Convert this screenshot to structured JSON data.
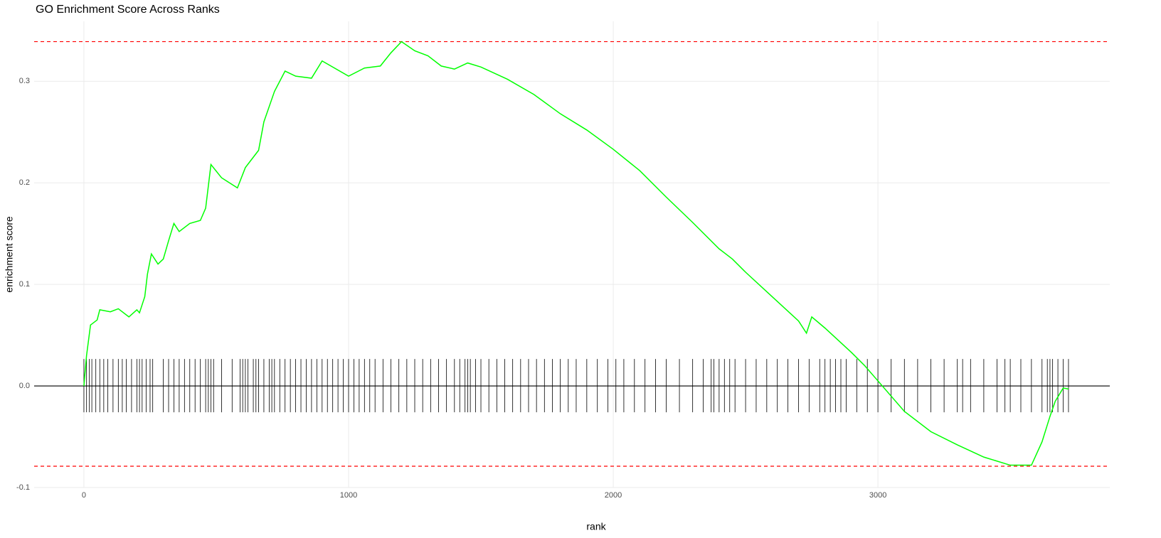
{
  "chart_data": {
    "type": "line",
    "title": "GO Enrichment Score Across Ranks",
    "x_label": "rank",
    "y_label": "enrichment score",
    "xlim": [
      -188,
      3876
    ],
    "ylim": [
      -0.1,
      0.359
    ],
    "xticks": [
      0,
      1000,
      2000,
      3000
    ],
    "yticks": [
      -0.1,
      {
        "value": 0,
        "label": "0.0"
      },
      0.1,
      0.2,
      0.3
    ],
    "grid": true,
    "baseline": 0,
    "hlines": [
      {
        "value": 0.339,
        "color": "#ff0000"
      },
      {
        "value": -0.079,
        "color": "#ff0000"
      }
    ],
    "x": [
      0,
      10,
      25,
      50,
      60,
      100,
      130,
      170,
      200,
      210,
      230,
      240,
      255,
      280,
      300,
      320,
      340,
      360,
      400,
      440,
      460,
      480,
      520,
      580,
      610,
      660,
      680,
      720,
      760,
      800,
      860,
      900,
      1000,
      1060,
      1120,
      1160,
      1200,
      1250,
      1300,
      1350,
      1400,
      1450,
      1500,
      1600,
      1700,
      1800,
      1900,
      2000,
      2100,
      2200,
      2300,
      2400,
      2450,
      2500,
      2600,
      2700,
      2730,
      2750,
      2800,
      2900,
      2950,
      3000,
      3100,
      3200,
      3300,
      3400,
      3500,
      3580,
      3620,
      3650,
      3670,
      3700,
      3720
    ],
    "series": [
      {
        "name": "enrichment score",
        "color": "#00ff00",
        "values": [
          0,
          0.03,
          0.06,
          0.065,
          0.075,
          0.073,
          0.076,
          0.068,
          0.075,
          0.072,
          0.088,
          0.11,
          0.13,
          0.12,
          0.125,
          0.143,
          0.16,
          0.152,
          0.16,
          0.163,
          0.175,
          0.218,
          0.205,
          0.195,
          0.215,
          0.232,
          0.26,
          0.29,
          0.31,
          0.305,
          0.303,
          0.32,
          0.305,
          0.313,
          0.315,
          0.328,
          0.339,
          0.33,
          0.325,
          0.315,
          0.312,
          0.318,
          0.314,
          0.302,
          0.287,
          0.268,
          0.252,
          0.233,
          0.212,
          0.186,
          0.161,
          0.135,
          0.125,
          0.112,
          0.088,
          0.064,
          0.052,
          0.068,
          0.057,
          0.033,
          0.02,
          0.005,
          -0.025,
          -0.045,
          -0.058,
          -0.07,
          -0.078,
          -0.078,
          -0.055,
          -0.03,
          -0.015,
          -0.002,
          -0.003
        ]
      }
    ],
    "hits": [
      0,
      10,
      20,
      30,
      45,
      60,
      75,
      90,
      110,
      130,
      145,
      160,
      180,
      200,
      210,
      220,
      235,
      250,
      260,
      300,
      320,
      340,
      360,
      380,
      400,
      420,
      440,
      460,
      470,
      480,
      490,
      520,
      560,
      590,
      600,
      610,
      620,
      640,
      650,
      660,
      680,
      700,
      710,
      720,
      740,
      760,
      780,
      800,
      820,
      840,
      860,
      880,
      900,
      920,
      940,
      960,
      980,
      1000,
      1020,
      1040,
      1060,
      1080,
      1100,
      1130,
      1160,
      1190,
      1220,
      1250,
      1280,
      1310,
      1340,
      1370,
      1400,
      1420,
      1440,
      1450,
      1460,
      1480,
      1500,
      1530,
      1560,
      1590,
      1620,
      1650,
      1680,
      1710,
      1740,
      1770,
      1800,
      1830,
      1860,
      1900,
      1940,
      1980,
      2010,
      2040,
      2080,
      2120,
      2160,
      2200,
      2250,
      2300,
      2340,
      2370,
      2380,
      2400,
      2420,
      2440,
      2460,
      2500,
      2540,
      2580,
      2620,
      2660,
      2700,
      2740,
      2780,
      2800,
      2820,
      2840,
      2860,
      2880,
      2920,
      2960,
      3000,
      3050,
      3100,
      3150,
      3200,
      3250,
      3300,
      3320,
      3350,
      3400,
      3450,
      3480,
      3500,
      3540,
      3580,
      3620,
      3640,
      3650,
      3660,
      3680,
      3700,
      3720
    ],
    "hit_color": "#000000"
  }
}
